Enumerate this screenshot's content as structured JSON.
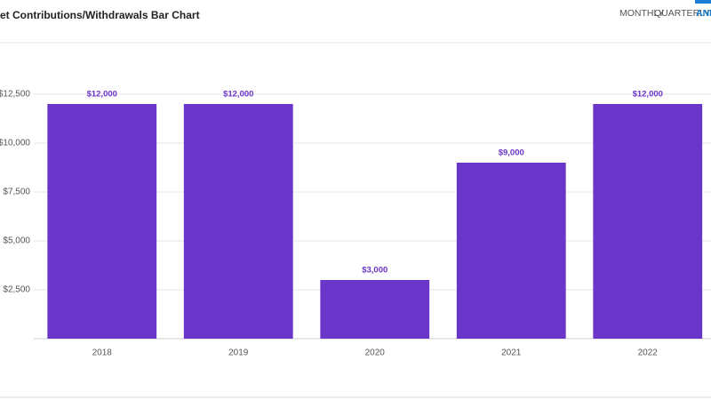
{
  "header": {
    "title": "et Contributions/Withdrawals Bar Chart",
    "tabs": [
      "MONTHLY",
      "QUARTERLY",
      "ANN"
    ]
  },
  "chart_data": {
    "type": "bar",
    "categories": [
      "2018",
      "2019",
      "2020",
      "2021",
      "2022"
    ],
    "values": [
      12000,
      12000,
      3000,
      9000,
      12000
    ],
    "value_labels": [
      "$12,000",
      "$12,000",
      "$3,000",
      "$9,000",
      "$12,000"
    ],
    "color": "#6a35c9",
    "ylim": [
      0,
      12500
    ],
    "yticks": [
      {
        "value": 2500,
        "label": "$2,500"
      },
      {
        "value": 5000,
        "label": "$5,000"
      },
      {
        "value": 7500,
        "label": "$7,500"
      },
      {
        "value": 10000,
        "label": "$10,000"
      },
      {
        "value": 12500,
        "label": "$12,500"
      }
    ],
    "grid": true
  }
}
